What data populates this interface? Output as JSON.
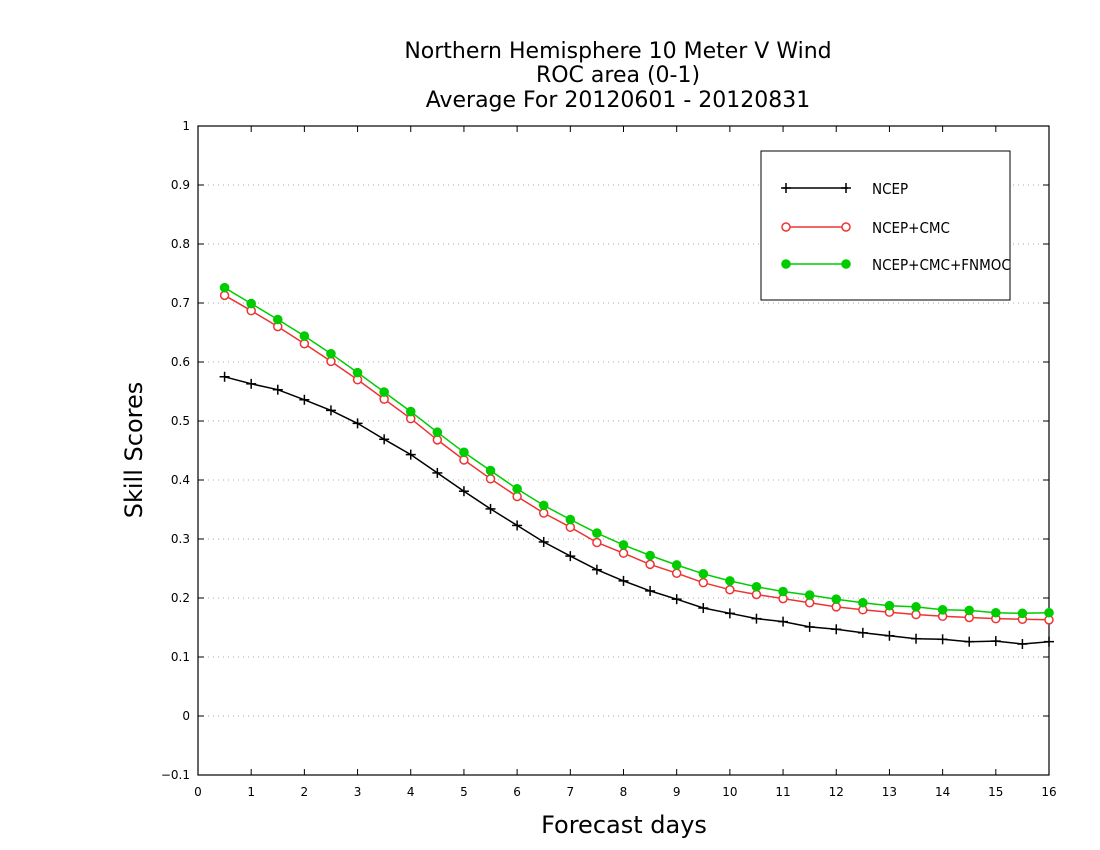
{
  "chart_data": {
    "type": "line",
    "title_lines": [
      "Northern Hemisphere 10 Meter V Wind",
      "ROC area (0-1)",
      "Average For 20120601 - 20120831"
    ],
    "xlabel": "Forecast days",
    "ylabel": "Skill Scores",
    "xlim": [
      0,
      16
    ],
    "ylim": [
      -0.1,
      1
    ],
    "xticks": [
      "0",
      "1",
      "2",
      "3",
      "4",
      "5",
      "6",
      "7",
      "8",
      "9",
      "10",
      "11",
      "12",
      "13",
      "14",
      "15",
      "16"
    ],
    "yticks": [
      "-0.1",
      "0",
      "0.1",
      "0.2",
      "0.3",
      "0.4",
      "0.5",
      "0.6",
      "0.7",
      "0.8",
      "0.9",
      "1"
    ],
    "grid": true,
    "legend_position": "top-right",
    "x": [
      0.5,
      1,
      1.5,
      2,
      2.5,
      3,
      3.5,
      4,
      4.5,
      5,
      5.5,
      6,
      6.5,
      7,
      7.5,
      8,
      8.5,
      9,
      9.5,
      10,
      10.5,
      11,
      11.5,
      12,
      12.5,
      13,
      13.5,
      14,
      14.5,
      15,
      15.5,
      16
    ],
    "series": [
      {
        "name": "NCEP",
        "color": "#000000",
        "marker": "plus",
        "values": [
          0.575,
          0.563,
          0.553,
          0.536,
          0.518,
          0.496,
          0.469,
          0.443,
          0.412,
          0.381,
          0.351,
          0.323,
          0.295,
          0.271,
          0.248,
          0.229,
          0.212,
          0.198,
          0.183,
          0.174,
          0.165,
          0.16,
          0.151,
          0.147,
          0.141,
          0.136,
          0.131,
          0.13,
          0.126,
          0.127,
          0.122,
          0.126
        ]
      },
      {
        "name": "NCEP+CMC",
        "color": "#ee3333",
        "marker": "open-circle",
        "values": [
          0.713,
          0.687,
          0.66,
          0.631,
          0.601,
          0.57,
          0.537,
          0.504,
          0.468,
          0.434,
          0.402,
          0.372,
          0.344,
          0.32,
          0.294,
          0.276,
          0.257,
          0.242,
          0.226,
          0.214,
          0.206,
          0.199,
          0.192,
          0.185,
          0.18,
          0.176,
          0.172,
          0.169,
          0.167,
          0.165,
          0.164,
          0.163
        ]
      },
      {
        "name": "NCEP+CMC+FNMOC",
        "color": "#00cc00",
        "marker": "filled-circle",
        "values": [
          0.726,
          0.699,
          0.672,
          0.644,
          0.614,
          0.582,
          0.549,
          0.516,
          0.481,
          0.447,
          0.416,
          0.385,
          0.357,
          0.333,
          0.31,
          0.29,
          0.272,
          0.256,
          0.241,
          0.229,
          0.219,
          0.211,
          0.205,
          0.198,
          0.192,
          0.187,
          0.185,
          0.18,
          0.179,
          0.175,
          0.174,
          0.175
        ]
      }
    ]
  }
}
